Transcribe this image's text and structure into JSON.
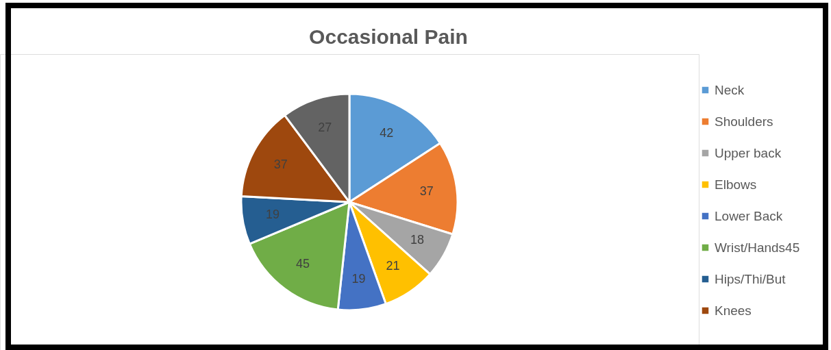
{
  "chart_data": {
    "type": "pie",
    "title": "Occasional Pain",
    "categories": [
      "Neck",
      "Shoulders",
      "Upper back",
      "Elbows",
      "Lower Back",
      "Wrist/Hands45",
      "Hips/Thi/But",
      "Knees",
      null
    ],
    "values": [
      42,
      37,
      18,
      21,
      19,
      45,
      19,
      37,
      27
    ],
    "colors": [
      "#5b9bd5",
      "#ed7d31",
      "#a5a5a5",
      "#ffc000",
      "#4472c4",
      "#70ad47",
      "#255e91",
      "#9e480e",
      "#636363"
    ],
    "data_labels": true,
    "legend": "right"
  }
}
